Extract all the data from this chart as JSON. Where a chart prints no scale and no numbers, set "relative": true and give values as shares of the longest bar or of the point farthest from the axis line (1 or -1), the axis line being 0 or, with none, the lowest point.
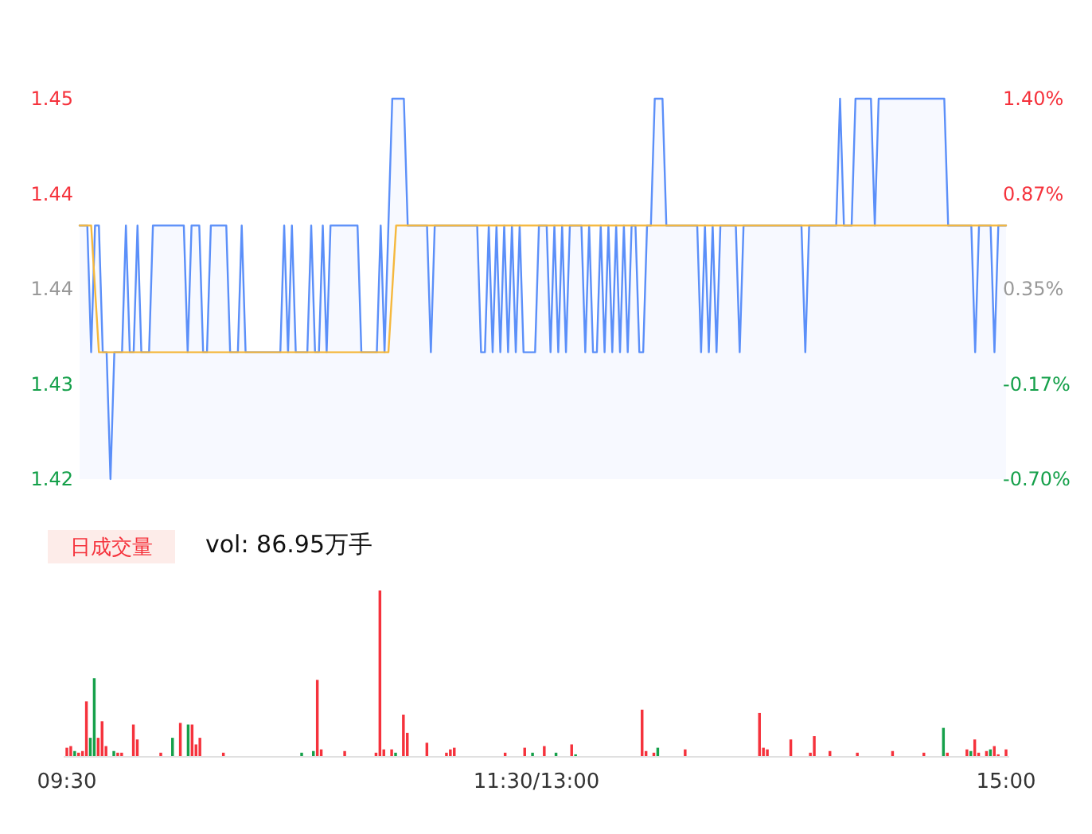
{
  "chart_data": [
    {
      "type": "line",
      "ylim": [
        1.42,
        1.45
      ],
      "categories": [
        null,
        null,
        null,
        null,
        null,
        null,
        null,
        null,
        null,
        null,
        null,
        null,
        null,
        null,
        null,
        null,
        null,
        null,
        null,
        null,
        null,
        null,
        null,
        null,
        null,
        null,
        null,
        null,
        null,
        null,
        null,
        null,
        null,
        null,
        null,
        null,
        null,
        null,
        null,
        null,
        null,
        null,
        null,
        null,
        null,
        null,
        null,
        null,
        null,
        null,
        null,
        null,
        null,
        null,
        null,
        null,
        null,
        null,
        null,
        null,
        null,
        null,
        null,
        null,
        null,
        null,
        null,
        null,
        null,
        null,
        null,
        null,
        null,
        null,
        null,
        null,
        null,
        null,
        null,
        null,
        null,
        null,
        null,
        null,
        null,
        null,
        null,
        null,
        null,
        null,
        null,
        null,
        null,
        null,
        null,
        null,
        null,
        null,
        null,
        null,
        null,
        null,
        null,
        null,
        null,
        null,
        null,
        null,
        null,
        null,
        null,
        null,
        null,
        null,
        null,
        null,
        null,
        null,
        null,
        null,
        null,
        null,
        null,
        null,
        null,
        null,
        null,
        null,
        null,
        null,
        null,
        null,
        null,
        null,
        null,
        null,
        null,
        null,
        null,
        null,
        null,
        null,
        null,
        null,
        null,
        null,
        null,
        null,
        null,
        null,
        null,
        null,
        null,
        null,
        null,
        null,
        null,
        null,
        null,
        null,
        null,
        null,
        null,
        null,
        null,
        null,
        null,
        null,
        null,
        null,
        null,
        null,
        null,
        null,
        null,
        null,
        null,
        null,
        null,
        null,
        null,
        null,
        null,
        null,
        null,
        null,
        null,
        null,
        null,
        null,
        null,
        null,
        null,
        null,
        null,
        null,
        null,
        null,
        null,
        null,
        null,
        null,
        null,
        null,
        null,
        null,
        null,
        null,
        null,
        null,
        null,
        null,
        null,
        null,
        null,
        null,
        null,
        null,
        null,
        null,
        null,
        null,
        null,
        null,
        null,
        null,
        null,
        null,
        null,
        null,
        null,
        null,
        null,
        null,
        null,
        null,
        null,
        null,
        null,
        null,
        null
      ],
      "yticks": [
        1.45,
        {
          "value": 1.4425,
          "label": "1.44"
        },
        {
          "value": 1.435,
          "label": "1.44"
        },
        {
          "value": 1.4275,
          "label": "1.43"
        },
        1.42
      ],
      "y2lim": [
        -0.7,
        1.4
      ],
      "y2ticks": [
        {
          "value": 1.4,
          "label": "1.40%"
        },
        {
          "value": 0.875,
          "label": "0.87%"
        },
        {
          "value": 0.35,
          "label": "0.35%"
        },
        {
          "value": -0.175,
          "label": "-0.17%"
        },
        {
          "value": -0.7,
          "label": "-0.70%"
        }
      ],
      "tick_labels": "y",
      "series": [
        {
          "type": "area",
          "color": "#5b8ff9",
          "values": [
            1.44,
            1.44,
            1.44,
            1.43,
            1.44,
            1.44,
            1.43,
            1.43,
            1.42,
            1.43,
            1.43,
            1.43,
            1.44,
            1.43,
            1.43,
            1.44,
            1.43,
            1.43,
            1.43,
            1.44,
            1.44,
            1.44,
            1.44,
            1.44,
            1.44,
            1.44,
            1.44,
            1.44,
            1.43,
            1.44,
            1.44,
            1.44,
            1.43,
            1.43,
            1.44,
            1.44,
            1.44,
            1.44,
            1.44,
            1.43,
            1.43,
            1.43,
            1.44,
            1.43,
            1.43,
            1.43,
            1.43,
            1.43,
            1.43,
            1.43,
            1.43,
            1.43,
            1.43,
            1.44,
            1.43,
            1.44,
            1.43,
            1.43,
            1.43,
            1.43,
            1.44,
            1.43,
            1.43,
            1.44,
            1.43,
            1.44,
            1.44,
            1.44,
            1.44,
            1.44,
            1.44,
            1.44,
            1.44,
            1.43,
            1.43,
            1.43,
            1.43,
            1.43,
            1.44,
            1.43,
            1.44,
            1.45,
            1.45,
            1.45,
            1.45,
            1.44,
            1.44,
            1.44,
            1.44,
            1.44,
            1.44,
            1.43,
            1.44,
            1.44,
            1.44,
            1.44,
            1.44,
            1.44,
            1.44,
            1.44,
            1.44,
            1.44,
            1.44,
            1.44,
            1.43,
            1.43,
            1.44,
            1.43,
            1.44,
            1.43,
            1.44,
            1.43,
            1.44,
            1.43,
            1.44,
            1.43,
            1.43,
            1.43,
            1.43,
            1.44,
            1.44,
            1.44,
            1.43,
            1.44,
            1.43,
            1.44,
            1.43,
            1.44,
            1.44,
            1.44,
            1.44,
            1.43,
            1.44,
            1.43,
            1.43,
            1.44,
            1.43,
            1.44,
            1.43,
            1.44,
            1.43,
            1.44,
            1.43,
            1.44,
            1.44,
            1.43,
            1.43,
            1.44,
            1.44,
            1.45,
            1.45,
            1.45,
            1.44,
            1.44,
            1.44,
            1.44,
            1.44,
            1.44,
            1.44,
            1.44,
            1.44,
            1.43,
            1.44,
            1.43,
            1.44,
            1.43,
            1.44,
            1.44,
            1.44,
            1.44,
            1.44,
            1.43,
            1.44,
            1.44,
            1.44,
            1.44,
            1.44,
            1.44,
            1.44,
            1.44,
            1.44,
            1.44,
            1.44,
            1.44,
            1.44,
            1.44,
            1.44,
            1.44,
            1.43,
            1.44,
            1.44,
            1.44,
            1.44,
            1.44,
            1.44,
            1.44,
            1.44,
            1.45,
            1.44,
            1.44,
            1.44,
            1.45,
            1.45,
            1.45,
            1.45,
            1.45,
            1.44,
            1.45,
            1.45,
            1.45,
            1.45,
            1.45,
            1.45,
            1.45,
            1.45,
            1.45,
            1.45,
            1.45,
            1.45,
            1.45,
            1.45,
            1.45,
            1.45,
            1.45,
            1.45,
            1.44,
            1.44,
            1.44,
            1.44,
            1.44,
            1.44,
            1.44,
            1.43,
            1.44,
            1.44,
            1.44,
            1.44,
            1.43,
            1.44,
            1.44,
            1.44
          ]
        },
        {
          "type": "line",
          "color": "#f5b83d",
          "values": [
            1.44,
            1.44,
            1.44,
            1.44,
            1.435,
            1.43,
            1.43,
            1.43,
            1.43,
            1.43,
            1.43,
            1.43,
            1.43,
            1.43,
            1.43,
            1.43,
            1.43,
            1.43,
            1.43,
            1.43,
            1.43,
            1.43,
            1.43,
            1.43,
            1.43,
            1.43,
            1.43,
            1.43,
            1.43,
            1.43,
            1.43,
            1.43,
            1.43,
            1.43,
            1.43,
            1.43,
            1.43,
            1.43,
            1.43,
            1.43,
            1.43,
            1.43,
            1.43,
            1.43,
            1.43,
            1.43,
            1.43,
            1.43,
            1.43,
            1.43,
            1.43,
            1.43,
            1.43,
            1.43,
            1.43,
            1.43,
            1.43,
            1.43,
            1.43,
            1.43,
            1.43,
            1.43,
            1.43,
            1.43,
            1.43,
            1.43,
            1.43,
            1.43,
            1.43,
            1.43,
            1.43,
            1.43,
            1.43,
            1.43,
            1.43,
            1.43,
            1.43,
            1.43,
            1.43,
            1.43,
            1.43,
            1.435,
            1.44,
            1.44,
            1.44,
            1.44,
            1.44,
            1.44,
            1.44,
            1.44,
            1.44,
            1.44,
            1.44,
            1.44,
            1.44,
            1.44,
            1.44,
            1.44,
            1.44,
            1.44,
            1.44,
            1.44,
            1.44,
            1.44,
            1.44,
            1.44,
            1.44,
            1.44,
            1.44,
            1.44,
            1.44,
            1.44,
            1.44,
            1.44,
            1.44,
            1.44,
            1.44,
            1.44,
            1.44,
            1.44,
            1.44,
            1.44,
            1.44,
            1.44,
            1.44,
            1.44,
            1.44,
            1.44,
            1.44,
            1.44,
            1.44,
            1.44,
            1.44,
            1.44,
            1.44,
            1.44,
            1.44,
            1.44,
            1.44,
            1.44,
            1.44,
            1.44,
            1.44,
            1.44,
            1.44,
            1.44,
            1.44,
            1.44,
            1.44,
            1.44,
            1.44,
            1.44,
            1.44,
            1.44,
            1.44,
            1.44,
            1.44,
            1.44,
            1.44,
            1.44,
            1.44,
            1.44,
            1.44,
            1.44,
            1.44,
            1.44,
            1.44,
            1.44,
            1.44,
            1.44,
            1.44,
            1.44,
            1.44,
            1.44,
            1.44,
            1.44,
            1.44,
            1.44,
            1.44,
            1.44,
            1.44,
            1.44,
            1.44,
            1.44,
            1.44,
            1.44,
            1.44,
            1.44,
            1.44,
            1.44,
            1.44,
            1.44,
            1.44,
            1.44,
            1.44,
            1.44,
            1.44,
            1.44,
            1.44,
            1.44,
            1.44,
            1.44,
            1.44,
            1.44,
            1.44,
            1.44,
            1.44,
            1.44,
            1.44,
            1.44,
            1.44,
            1.44,
            1.44,
            1.44,
            1.44,
            1.44,
            1.44,
            1.44,
            1.44,
            1.44,
            1.44,
            1.44,
            1.44,
            1.44,
            1.44,
            1.44,
            1.44,
            1.44,
            1.44,
            1.44,
            1.44,
            1.44,
            1.44,
            1.44,
            1.44,
            1.44,
            1.44,
            1.44,
            1.44,
            1.44,
            1.44
          ]
        }
      ]
    },
    {
      "type": "bar",
      "relative": true,
      "categories": [
        "09:30",
        null,
        null,
        null,
        null,
        null,
        null,
        null,
        null,
        null,
        null,
        null,
        null,
        null,
        null,
        null,
        null,
        null,
        null,
        null,
        null,
        null,
        null,
        null,
        null,
        null,
        null,
        null,
        null,
        null,
        null,
        null,
        null,
        null,
        null,
        null,
        null,
        null,
        null,
        null,
        null,
        null,
        null,
        null,
        null,
        null,
        null,
        null,
        null,
        null,
        null,
        null,
        null,
        null,
        null,
        null,
        null,
        null,
        null,
        null,
        null,
        null,
        null,
        null,
        null,
        null,
        null,
        null,
        null,
        null,
        null,
        null,
        null,
        null,
        null,
        null,
        null,
        null,
        null,
        null,
        null,
        null,
        null,
        null,
        null,
        null,
        null,
        null,
        null,
        null,
        null,
        null,
        null,
        null,
        null,
        null,
        null,
        null,
        null,
        null,
        null,
        null,
        null,
        null,
        null,
        null,
        null,
        null,
        null,
        null,
        null,
        null,
        null,
        null,
        null,
        null,
        null,
        null,
        null,
        null,
        "11:30/13:00",
        null,
        null,
        null,
        null,
        null,
        null,
        null,
        null,
        null,
        null,
        null,
        null,
        null,
        null,
        null,
        null,
        null,
        null,
        null,
        null,
        null,
        null,
        null,
        null,
        null,
        null,
        null,
        null,
        null,
        null,
        null,
        null,
        null,
        null,
        null,
        null,
        null,
        null,
        null,
        null,
        null,
        null,
        null,
        null,
        null,
        null,
        null,
        null,
        null,
        null,
        null,
        null,
        null,
        null,
        null,
        null,
        null,
        null,
        null,
        null,
        null,
        null,
        null,
        null,
        null,
        null,
        null,
        null,
        null,
        null,
        null,
        null,
        null,
        null,
        null,
        null,
        null,
        null,
        null,
        null,
        null,
        null,
        null,
        null,
        null,
        null,
        null,
        null,
        null,
        null,
        null,
        null,
        null,
        null,
        null,
        null,
        null,
        null,
        null,
        null,
        null,
        null,
        null,
        null,
        null,
        null,
        null,
        null,
        null,
        null,
        null,
        null,
        null,
        null,
        null,
        null,
        null,
        null,
        null,
        "15:00"
      ],
      "tick_labels": "x",
      "annotations": [
        "日成交量",
        "vol: 86.95万手"
      ],
      "series": [
        {
          "color": "#f5323c",
          "values": [
            0.05,
            0.06,
            null,
            0.02,
            0.03,
            0.33,
            null,
            null,
            0.11,
            0.21,
            0.06,
            null,
            null,
            0.02,
            0.02,
            null,
            null,
            0.19,
            0.1,
            null,
            null,
            null,
            null,
            null,
            0.02,
            null,
            null,
            null,
            null,
            0.2,
            null,
            null,
            0.19,
            0.07,
            0.11,
            null,
            null,
            null,
            null,
            null,
            0.02,
            null,
            null,
            null,
            null,
            null,
            null,
            null,
            null,
            null,
            null,
            null,
            null,
            null,
            null,
            null,
            null,
            null,
            null,
            null,
            null,
            null,
            null,
            null,
            0.46,
            0.04,
            null,
            null,
            null,
            null,
            null,
            0.03,
            null,
            null,
            null,
            null,
            null,
            null,
            null,
            0.02,
            1,
            0.04,
            null,
            0.04,
            null,
            null,
            0.25,
            0.14,
            null,
            null,
            null,
            null,
            0.08,
            null,
            null,
            null,
            null,
            0.02,
            0.04,
            0.05,
            null,
            null,
            null,
            null,
            null,
            null,
            null,
            null,
            null,
            null,
            null,
            null,
            0.02,
            null,
            null,
            null,
            null,
            0.05,
            null,
            null,
            null,
            null,
            0.06,
            null,
            null,
            null,
            null,
            null,
            null,
            0.07,
            null,
            null,
            null,
            null,
            null,
            null,
            null,
            null,
            null,
            null,
            null,
            null,
            null,
            null,
            null,
            null,
            null,
            0.28,
            0.03,
            null,
            0.02,
            null,
            null,
            null,
            null,
            null,
            null,
            null,
            0.04,
            null,
            null,
            null,
            null,
            null,
            null,
            null,
            null,
            null,
            null,
            null,
            null,
            null,
            null,
            null,
            null,
            null,
            null,
            0.26,
            0.05,
            0.04,
            null,
            null,
            null,
            null,
            null,
            0.1,
            null,
            null,
            null,
            null,
            0.02,
            0.12,
            null,
            null,
            null,
            0.03,
            null,
            null,
            null,
            null,
            null,
            null,
            0.02,
            null,
            null,
            null,
            null,
            null,
            null,
            null,
            null,
            0.03,
            null,
            null,
            null,
            null,
            null,
            null,
            null,
            0.02,
            null,
            null,
            null,
            null,
            null,
            0.02,
            null,
            null,
            null,
            null,
            0.04,
            null,
            0.1,
            0.02,
            null,
            0.03,
            null,
            0.06,
            0.01,
            null,
            0.04
          ]
        },
        {
          "color": "#15a04a",
          "values": [
            null,
            null,
            0.03,
            null,
            null,
            null,
            0.11,
            0.47,
            null,
            null,
            null,
            null,
            0.03,
            null,
            null,
            null,
            null,
            null,
            null,
            null,
            null,
            null,
            null,
            null,
            null,
            null,
            null,
            0.11,
            null,
            null,
            null,
            0.19,
            null,
            null,
            null,
            null,
            null,
            null,
            null,
            null,
            null,
            null,
            null,
            null,
            null,
            null,
            null,
            null,
            null,
            null,
            null,
            null,
            null,
            null,
            null,
            null,
            null,
            null,
            null,
            null,
            0.02,
            null,
            null,
            0.03,
            null,
            null,
            null,
            null,
            null,
            null,
            null,
            null,
            null,
            null,
            null,
            null,
            null,
            null,
            null,
            null,
            null,
            null,
            null,
            null,
            0.02,
            null,
            null,
            null,
            null,
            null,
            null,
            null,
            null,
            null,
            null,
            null,
            null,
            null,
            null,
            null,
            null,
            null,
            null,
            null,
            null,
            null,
            null,
            null,
            null,
            null,
            null,
            null,
            null,
            null,
            null,
            null,
            null,
            null,
            null,
            0.02,
            null,
            null,
            null,
            null,
            null,
            0.02,
            null,
            null,
            null,
            null,
            0.01,
            null,
            null,
            null,
            null,
            null,
            null,
            null,
            null,
            null,
            null,
            null,
            null,
            null,
            null,
            null,
            null,
            null,
            null,
            null,
            null,
            0.05,
            null,
            null,
            null,
            null,
            null,
            null,
            null,
            null,
            null,
            null,
            null,
            null,
            null,
            null,
            null,
            null,
            null,
            null,
            null,
            null,
            null,
            null,
            null,
            null,
            null,
            null,
            null,
            null,
            null,
            null,
            null,
            null,
            null,
            null,
            null,
            null,
            null,
            null,
            null,
            null,
            null,
            null,
            null,
            null,
            null,
            null,
            null,
            null,
            null,
            null,
            null,
            null,
            null,
            null,
            null,
            null,
            null,
            null,
            null,
            null,
            null,
            null,
            null,
            null,
            null,
            null,
            null,
            null,
            null,
            null,
            null,
            null,
            0.17,
            null,
            null,
            null,
            null,
            null,
            null,
            0.03,
            null,
            null,
            null,
            null,
            0.04,
            null,
            null,
            null,
            null
          ]
        }
      ]
    }
  ]
}
